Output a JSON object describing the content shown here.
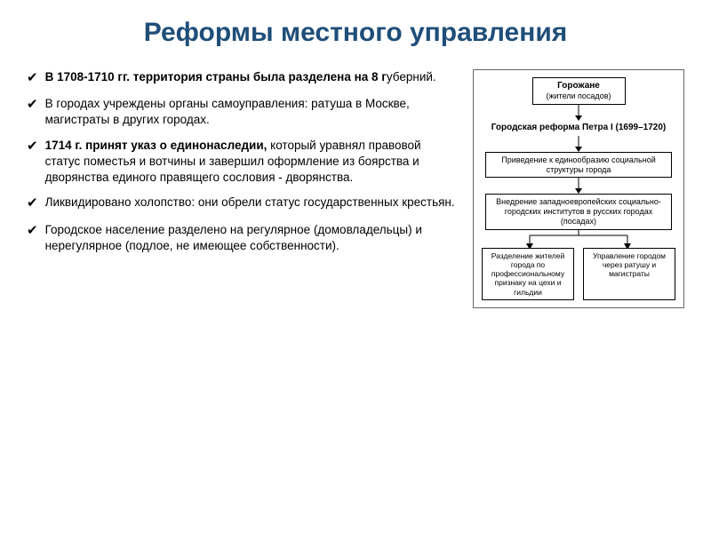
{
  "title": "Реформы местного управления",
  "bullets": [
    {
      "prefix": "✔",
      "html": "В 1708-1710 гг. территория страны была разделена на 8 губерний.",
      "boldRanges": [
        [
          0,
          55
        ]
      ]
    },
    {
      "prefix": "✔",
      "html": "В городах учреждены органы самоуправления: ратуша в Москве, магистраты в других городах."
    },
    {
      "prefix": "✔",
      "html": "1714 г. принят указ о единонаследии, который уравнял правовой статус поместья и вотчины и завершил оформление из боярства и дворянства единого правящего сословия - дворянства.",
      "boldRanges": [
        [
          0,
          36
        ]
      ]
    },
    {
      "prefix": "✔",
      "html": "Ликвидировано холопство: они обрели статус государственных крестьян."
    },
    {
      "prefix": "✔",
      "html": "Городское население разделено на регулярное (домовладельцы) и нерегулярное (подлое, не имеющее собственности)."
    }
  ],
  "diagram": {
    "top": {
      "line1": "Горожане",
      "line2": "(жители посадов)"
    },
    "reformLabel": "Городская реформа Петра I (1699–1720)",
    "step1": "Приведение к единообразию социальной структуры города",
    "step2": "Внедрение западноевропейских социально-городских институтов в русских городах (посадах)",
    "split": {
      "left": "Разделение жителей города по профессиональному признаку на цехи и гильдии",
      "right": "Управление городом через ратушу и магистраты"
    }
  },
  "colors": {
    "title": "#1f4e79",
    "text": "#000000",
    "border": "#000000",
    "background": "#ffffff"
  }
}
